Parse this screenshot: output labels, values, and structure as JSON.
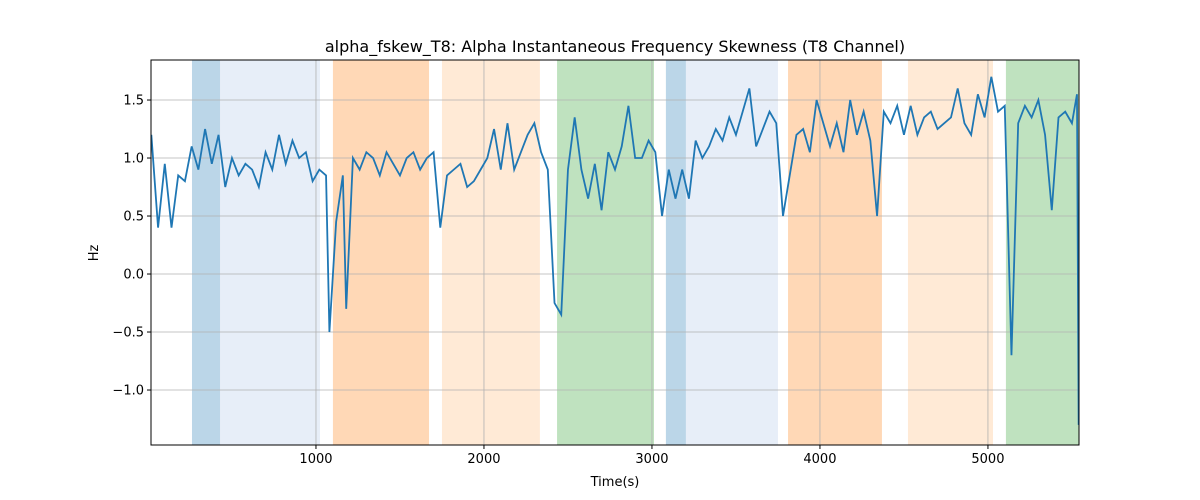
{
  "chart_data": {
    "type": "line",
    "title": "alpha_fskew_T8: Alpha Instantaneous Frequency Skewness (T8 Channel)",
    "x_label": "Time(s)",
    "y_label": "Hz",
    "xlim": [
      18,
      5542
    ],
    "ylim": [
      -1.474,
      1.845
    ],
    "xticks": [
      1000,
      2000,
      3000,
      4000,
      5000
    ],
    "yticks": [
      {
        "value": -1.0,
        "label": "−1.0"
      },
      {
        "value": -0.5,
        "label": "−0.5"
      },
      {
        "value": 0,
        "label": "0.0"
      },
      0.5,
      {
        "value": 1.0,
        "label": "1.0"
      },
      1.5
    ],
    "grid": true,
    "spans": [
      {
        "start": 262,
        "end": 429,
        "color": "#1f77b4",
        "opacity": 0.3
      },
      {
        "start": 429,
        "end": 1024,
        "color": "#aec7e8",
        "opacity": 0.3
      },
      {
        "start": 1101,
        "end": 1673,
        "color": "#ff7f0e",
        "opacity": 0.3
      },
      {
        "start": 1750,
        "end": 2333,
        "color": "#ffbb78",
        "opacity": 0.3
      },
      {
        "start": 2435,
        "end": 3012,
        "color": "#2ca02c",
        "opacity": 0.3
      },
      {
        "start": 3083,
        "end": 3202,
        "color": "#1f77b4",
        "opacity": 0.3
      },
      {
        "start": 3202,
        "end": 3750,
        "color": "#aec7e8",
        "opacity": 0.3
      },
      {
        "start": 3810,
        "end": 4369,
        "color": "#ff7f0e",
        "opacity": 0.3
      },
      {
        "start": 4524,
        "end": 5030,
        "color": "#ffbb78",
        "opacity": 0.3
      },
      {
        "start": 5107,
        "end": 5542,
        "color": "#2ca02c",
        "opacity": 0.3
      }
    ],
    "x": [
      20,
      60,
      100,
      140,
      180,
      220,
      260,
      300,
      340,
      380,
      420,
      460,
      500,
      540,
      580,
      620,
      660,
      700,
      740,
      780,
      820,
      860,
      900,
      940,
      980,
      1020,
      1060,
      1080,
      1120,
      1160,
      1180,
      1220,
      1260,
      1300,
      1340,
      1380,
      1420,
      1460,
      1500,
      1540,
      1580,
      1620,
      1660,
      1700,
      1740,
      1780,
      1820,
      1860,
      1900,
      1940,
      1980,
      2020,
      2060,
      2100,
      2140,
      2180,
      2220,
      2260,
      2300,
      2340,
      2380,
      2420,
      2460,
      2500,
      2540,
      2580,
      2620,
      2660,
      2700,
      2740,
      2780,
      2820,
      2860,
      2900,
      2940,
      2980,
      3020,
      3060,
      3100,
      3140,
      3180,
      3220,
      3260,
      3300,
      3340,
      3380,
      3420,
      3460,
      3500,
      3540,
      3580,
      3620,
      3660,
      3700,
      3740,
      3780,
      3820,
      3860,
      3900,
      3940,
      3980,
      4020,
      4060,
      4100,
      4140,
      4180,
      4220,
      4260,
      4300,
      4340,
      4380,
      4420,
      4460,
      4500,
      4540,
      4580,
      4620,
      4660,
      4700,
      4740,
      4780,
      4820,
      4860,
      4900,
      4940,
      4980,
      5020,
      5060,
      5100,
      5140,
      5180,
      5220,
      5260,
      5300,
      5340,
      5380,
      5420,
      5460,
      5500,
      5530,
      5540
    ],
    "series": [
      {
        "name": "alpha_fskew_T8",
        "color": "#1f77b4",
        "values": [
          1.2,
          0.4,
          0.95,
          0.4,
          0.85,
          0.8,
          1.1,
          0.9,
          1.25,
          0.95,
          1.2,
          0.75,
          1.0,
          0.85,
          0.95,
          0.9,
          0.75,
          1.05,
          0.9,
          1.2,
          0.95,
          1.15,
          1.0,
          1.05,
          0.8,
          0.9,
          0.85,
          -0.5,
          0.45,
          0.85,
          -0.3,
          1.0,
          0.9,
          1.05,
          1.0,
          0.85,
          1.05,
          0.95,
          0.85,
          1.0,
          1.05,
          0.9,
          1.0,
          1.05,
          0.4,
          0.85,
          0.9,
          0.95,
          0.75,
          0.8,
          0.9,
          1.0,
          1.25,
          0.9,
          1.3,
          0.9,
          1.05,
          1.2,
          1.3,
          1.05,
          0.9,
          -0.25,
          -0.35,
          0.9,
          1.35,
          0.9,
          0.65,
          0.95,
          0.55,
          1.05,
          0.9,
          1.1,
          1.45,
          1.0,
          1.0,
          1.15,
          1.05,
          0.5,
          0.9,
          0.65,
          0.9,
          0.65,
          1.15,
          1.0,
          1.1,
          1.25,
          1.15,
          1.35,
          1.2,
          1.4,
          1.6,
          1.1,
          1.25,
          1.4,
          1.3,
          0.5,
          0.85,
          1.2,
          1.25,
          1.05,
          1.5,
          1.3,
          1.1,
          1.3,
          1.05,
          1.5,
          1.2,
          1.4,
          1.15,
          0.5,
          1.4,
          1.3,
          1.45,
          1.2,
          1.45,
          1.2,
          1.35,
          1.4,
          1.25,
          1.3,
          1.35,
          1.6,
          1.3,
          1.2,
          1.55,
          1.35,
          1.7,
          1.4,
          1.45,
          -0.7,
          1.3,
          1.45,
          1.35,
          1.5,
          1.2,
          0.55,
          1.35,
          1.4,
          1.3,
          1.55,
          -1.3
        ]
      }
    ]
  }
}
